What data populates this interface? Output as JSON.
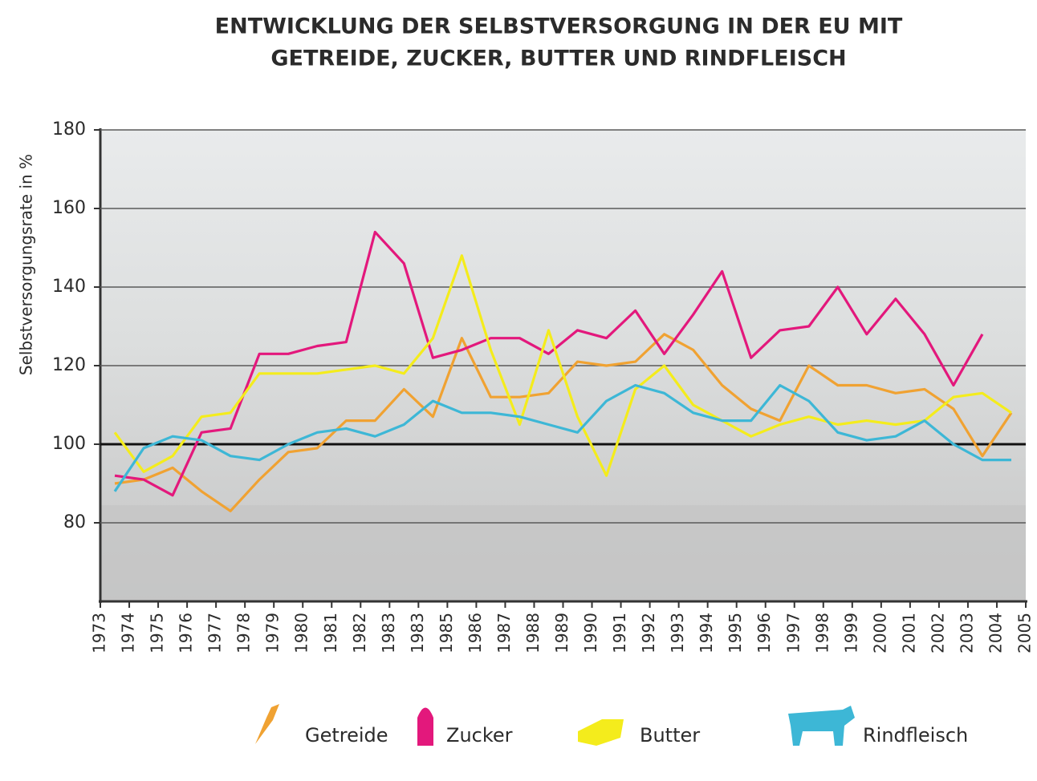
{
  "chart_data": {
    "type": "line",
    "title_lines": [
      "ENTWICKLUNG DER SELBSTVERSORGUNG IN DER EU MIT",
      "GETREIDE, ZUCKER, BUTTER UND RINDFLEISCH"
    ],
    "y_label": "Selbstversorgungsrate in %",
    "categories": [
      "1973",
      "1974",
      "1975",
      "1976",
      "1977",
      "1978",
      "1979",
      "1980",
      "1981",
      "1982",
      "1983",
      "1983",
      "1985",
      "1986",
      "1987",
      "1988",
      "1989",
      "1990",
      "1991",
      "1992",
      "1993",
      "1994",
      "1995",
      "1996",
      "1997",
      "1998",
      "1999",
      "2000",
      "2001",
      "2002",
      "2003",
      "2004",
      "2005"
    ],
    "series": [
      {
        "name": "Getreide",
        "color": "#f0a232",
        "values": [
          90,
          91,
          94,
          88,
          83,
          91,
          98,
          99,
          106,
          106,
          114,
          107,
          127,
          112,
          112,
          113,
          121,
          120,
          121,
          128,
          124,
          115,
          109,
          106,
          120,
          115,
          115,
          113,
          114,
          109,
          97,
          108,
          null
        ]
      },
      {
        "name": "Zucker",
        "color": "#e3187c",
        "values": [
          92,
          91,
          87,
          103,
          104,
          123,
          123,
          125,
          126,
          154,
          146,
          122,
          124,
          127,
          127,
          123,
          129,
          127,
          134,
          123,
          133,
          144,
          122,
          129,
          130,
          140,
          128,
          137,
          128,
          115,
          128,
          null,
          null
        ]
      },
      {
        "name": "Butter",
        "color": "#f4ec1c",
        "values": [
          103,
          93,
          97,
          107,
          108,
          118,
          118,
          118,
          119,
          120,
          118,
          127,
          148,
          124,
          105,
          129,
          107,
          92,
          114,
          120,
          110,
          106,
          102,
          105,
          107,
          105,
          106,
          105,
          106,
          112,
          113,
          108,
          null
        ]
      },
      {
        "name": "Rindfleisch",
        "color": "#3db7d6",
        "values": [
          88,
          99,
          102,
          101,
          97,
          96,
          100,
          103,
          104,
          102,
          105,
          111,
          108,
          108,
          107,
          105,
          103,
          111,
          115,
          113,
          108,
          106,
          106,
          115,
          111,
          103,
          101,
          102,
          106,
          100,
          96,
          96,
          null
        ]
      }
    ],
    "reference_line": 100,
    "ylim": [
      60,
      180
    ],
    "yticks": [
      80,
      100,
      120,
      140,
      160,
      180
    ],
    "grid": true
  }
}
